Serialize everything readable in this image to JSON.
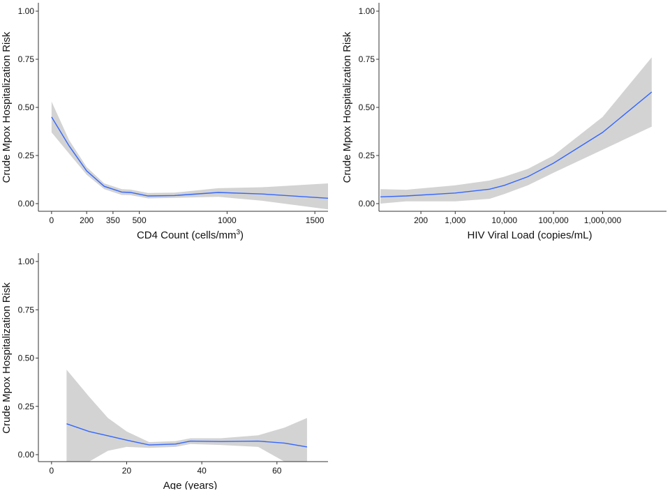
{
  "chart_data": [
    {
      "type": "line",
      "xlabel": "CD4 Count (cells/mm³)",
      "xlabel_main": "CD4 Count (cells/mm",
      "xlabel_sup": "3",
      "xlabel_end": ")",
      "ylabel": "Crude Mpox Hospitalization Risk",
      "x_scale": "linear",
      "xlim": [
        -75,
        1575
      ],
      "ylim": [
        -0.04,
        1.04
      ],
      "xticks": [
        0,
        200,
        350,
        500,
        1000,
        1500
      ],
      "xtick_labels": [
        "0",
        "200",
        "350",
        "500",
        "1000",
        "1500"
      ],
      "yticks": [
        0,
        0.25,
        0.5,
        0.75,
        1
      ],
      "ytick_labels": [
        "0.00",
        "0.25",
        "0.50",
        "0.75",
        "1.00"
      ],
      "grid": false,
      "line_color": "#3366FF",
      "band_color": "#D3D3D3",
      "x": [
        0,
        100,
        200,
        300,
        400,
        450,
        550,
        700,
        950,
        1200,
        1575
      ],
      "fit": [
        0.45,
        0.3,
        0.17,
        0.09,
        0.06,
        0.058,
        0.04,
        0.042,
        0.058,
        0.05,
        0.028
      ],
      "lower": [
        0.37,
        0.26,
        0.15,
        0.075,
        0.045,
        0.044,
        0.027,
        0.03,
        0.035,
        0.015,
        -0.03
      ],
      "upper": [
        0.53,
        0.33,
        0.19,
        0.105,
        0.075,
        0.073,
        0.055,
        0.057,
        0.08,
        0.085,
        0.105
      ]
    },
    {
      "type": "line",
      "xlabel": "HIV Viral Load (copies/mL)",
      "ylabel": "Crude Mpox Hospitalization Risk",
      "x_scale": "log10",
      "xlim": [
        28,
        20000000
      ],
      "ylim": [
        -0.04,
        1.04
      ],
      "xticks": [
        200,
        1000,
        10000,
        100000,
        1000000
      ],
      "xtick_labels": [
        "200",
        "1,000",
        "10,000",
        "100,000",
        "1,000,000"
      ],
      "yticks": [
        0,
        0.25,
        0.5,
        0.75,
        1
      ],
      "ytick_labels": [
        "0.00",
        "0.25",
        "0.50",
        "0.75",
        "1.00"
      ],
      "grid": false,
      "line_color": "#3366FF",
      "band_color": "#D3D3D3",
      "x": [
        30,
        100,
        1000,
        5000,
        10000,
        30000,
        100000,
        1000000,
        10000000
      ],
      "fit": [
        0.035,
        0.04,
        0.055,
        0.075,
        0.095,
        0.14,
        0.21,
        0.37,
        0.58
      ],
      "lower": [
        0.0,
        0.012,
        0.012,
        0.025,
        0.05,
        0.095,
        0.16,
        0.28,
        0.4
      ],
      "upper": [
        0.075,
        0.072,
        0.095,
        0.12,
        0.14,
        0.18,
        0.25,
        0.45,
        0.76
      ]
    },
    {
      "type": "line",
      "xlabel": "Age (years)",
      "ylabel": "Crude Mpox Hospitalization Risk",
      "x_scale": "linear",
      "xlim": [
        -3.5,
        73.6
      ],
      "ylim": [
        -0.04,
        1.04
      ],
      "xticks": [
        0,
        20,
        40,
        60
      ],
      "xtick_labels": [
        "0",
        "20",
        "40",
        "60"
      ],
      "yticks": [
        0,
        0.25,
        0.5,
        0.75,
        1
      ],
      "ytick_labels": [
        "0.00",
        "0.25",
        "0.50",
        "0.75",
        "1.00"
      ],
      "grid": false,
      "line_color": "#3366FF",
      "band_color": "#D3D3D3",
      "x": [
        4,
        10,
        15,
        20,
        26,
        33,
        37,
        45,
        55,
        62,
        68
      ],
      "fit": [
        0.16,
        0.12,
        0.098,
        0.075,
        0.05,
        0.055,
        0.07,
        0.068,
        0.07,
        0.06,
        0.04
      ],
      "lower": [
        -0.04,
        -0.04,
        0.02,
        0.04,
        0.035,
        0.04,
        0.055,
        0.05,
        0.04,
        -0.04,
        -0.04
      ],
      "upper": [
        0.44,
        0.3,
        0.19,
        0.12,
        0.065,
        0.07,
        0.085,
        0.085,
        0.1,
        0.14,
        0.19
      ]
    }
  ]
}
